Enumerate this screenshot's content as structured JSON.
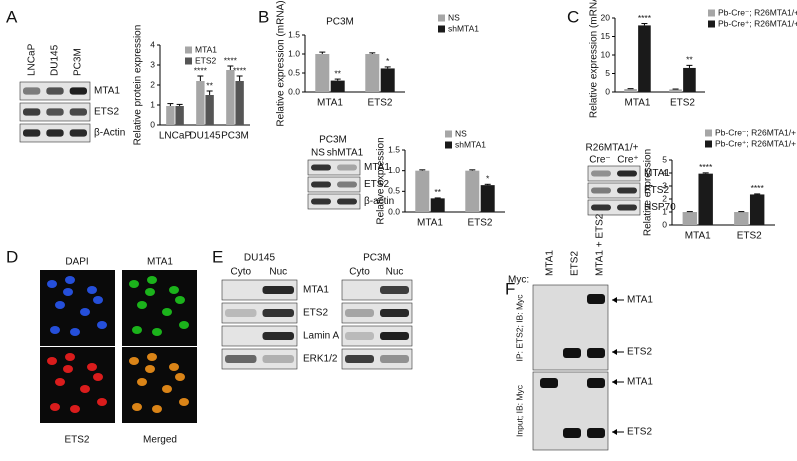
{
  "chart_data": [
    {
      "type": "bar",
      "ylabel": "Relative protein expression",
      "categories": [
        "LNCaP",
        "DU145",
        "PC3M"
      ],
      "series": [
        {
          "name": "MTA1",
          "color": "#a6a6a6",
          "values": [
            0.95,
            2.2,
            2.75
          ],
          "errors": [
            0.12,
            0.25,
            0.2
          ],
          "significance": [
            null,
            "****",
            "****"
          ]
        },
        {
          "name": "ETS2",
          "color": "#555555",
          "values": [
            0.95,
            1.5,
            2.2
          ],
          "errors": [
            0.08,
            0.2,
            0.25
          ],
          "significance": [
            null,
            "**",
            "****"
          ]
        }
      ],
      "ylim": [
        0,
        4
      ],
      "yticks": [
        0,
        1,
        2,
        3,
        4
      ]
    },
    {
      "type": "bar",
      "title": "PC3M",
      "ylabel": "Relative expression (mRNA)",
      "categories": [
        "MTA1",
        "ETS2"
      ],
      "series": [
        {
          "name": "NS",
          "color": "#a6a6a6",
          "values": [
            1.0,
            1.0
          ],
          "errors": [
            0.05,
            0.03
          ],
          "significance": [
            null,
            null
          ]
        },
        {
          "name": "shMTA1",
          "color": "#1a1a1a",
          "values": [
            0.3,
            0.62
          ],
          "errors": [
            0.04,
            0.04
          ],
          "significance": [
            "**",
            "*"
          ]
        }
      ],
      "ylim": [
        0,
        1.5
      ],
      "yticks": [
        {
          "value": 0,
          "label": "0.0"
        },
        0.5,
        {
          "value": 1,
          "label": "1.0"
        },
        1.5
      ]
    },
    {
      "type": "bar",
      "ylabel": "Relative expression",
      "categories": [
        "MTA1",
        "ETS2"
      ],
      "series": [
        {
          "name": "NS",
          "color": "#a6a6a6",
          "values": [
            1.0,
            1.0
          ],
          "errors": [
            0.02,
            0.02
          ],
          "significance": [
            null,
            null
          ]
        },
        {
          "name": "shMTA1",
          "color": "#1a1a1a",
          "values": [
            0.33,
            0.65
          ],
          "errors": [
            0.01,
            0.02
          ],
          "significance": [
            "**",
            "*"
          ]
        }
      ],
      "ylim": [
        0,
        1.5
      ],
      "yticks": [
        {
          "value": 0,
          "label": "0.0"
        },
        0.5,
        {
          "value": 1,
          "label": "1.0"
        },
        1.5
      ]
    },
    {
      "type": "bar",
      "ylabel": "Relative expression (mRNA)",
      "categories": [
        "MTA1",
        "ETS2"
      ],
      "series": [
        {
          "name": "Pb-Cre⁻; R26MTA1/+",
          "color": "#a6a6a6",
          "values": [
            0.8,
            0.7
          ],
          "errors": [
            0.1,
            0.1
          ],
          "significance": [
            null,
            null
          ]
        },
        {
          "name": "Pb-Cre⁺; R26MTA1/+",
          "color": "#1a1a1a",
          "values": [
            18,
            6.5
          ],
          "errors": [
            0.5,
            0.7
          ],
          "significance": [
            "****",
            "**"
          ]
        }
      ],
      "ylim": [
        0,
        20
      ],
      "yticks": [
        0,
        5,
        10,
        15,
        20
      ]
    },
    {
      "type": "bar",
      "ylabel": "Relative expression",
      "categories": [
        "MTA1",
        "ETS2"
      ],
      "series": [
        {
          "name": "Pb-Cre⁻; R26MTA1/+",
          "color": "#a6a6a6",
          "values": [
            1.0,
            1.0
          ],
          "errors": [
            0.03,
            0.03
          ],
          "significance": [
            null,
            null
          ]
        },
        {
          "name": "Pb-Cre⁺; R26MTA1/+",
          "color": "#1a1a1a",
          "values": [
            3.95,
            2.35
          ],
          "errors": [
            0.06,
            0.04
          ],
          "significance": [
            "****",
            "****"
          ]
        }
      ],
      "ylim": [
        0,
        5
      ],
      "yticks": [
        0,
        1,
        2,
        3,
        4,
        5
      ]
    }
  ],
  "panels": {
    "labels": [
      "A",
      "B",
      "C",
      "D",
      "E",
      "F"
    ],
    "A_blot": {
      "lanes": [
        "LNCaP",
        "DU145",
        "PC3M"
      ],
      "rows": [
        "MTA1",
        "ETS2",
        "β-Actin"
      ]
    },
    "B_blot": {
      "title": "PC3M",
      "lanes": [
        "NS",
        "shMTA1"
      ],
      "rows": [
        "MTA1",
        "ETS2",
        "β-actin"
      ]
    },
    "C_blot": {
      "title": "R26MTA1/+",
      "lanes": [
        "Cre⁻",
        "Cre⁺"
      ],
      "rows": [
        "MTA1",
        "ETS2",
        "HSP70"
      ]
    },
    "D_images": [
      "DAPI",
      "MTA1",
      "ETS2",
      "Merged"
    ],
    "E_blots": [
      {
        "title": "DU145",
        "lanes": [
          "Cyto",
          "Nuc"
        ]
      },
      {
        "title": "PC3M",
        "lanes": [
          "Cyto",
          "Nuc"
        ]
      }
    ],
    "E_rows": [
      "MTA1",
      "ETS2",
      "Lamin A",
      "ERK1/2"
    ],
    "F_blot": {
      "tag": "Myc:",
      "lanes": [
        "MTA1",
        "ETS2",
        "MTA1 + ETS2"
      ],
      "sections": [
        "IP: ETS2; IB: Myc",
        "Input; IB: Myc"
      ],
      "arrows": [
        "MTA1",
        "ETS2",
        "MTA1",
        "ETS2"
      ]
    }
  }
}
